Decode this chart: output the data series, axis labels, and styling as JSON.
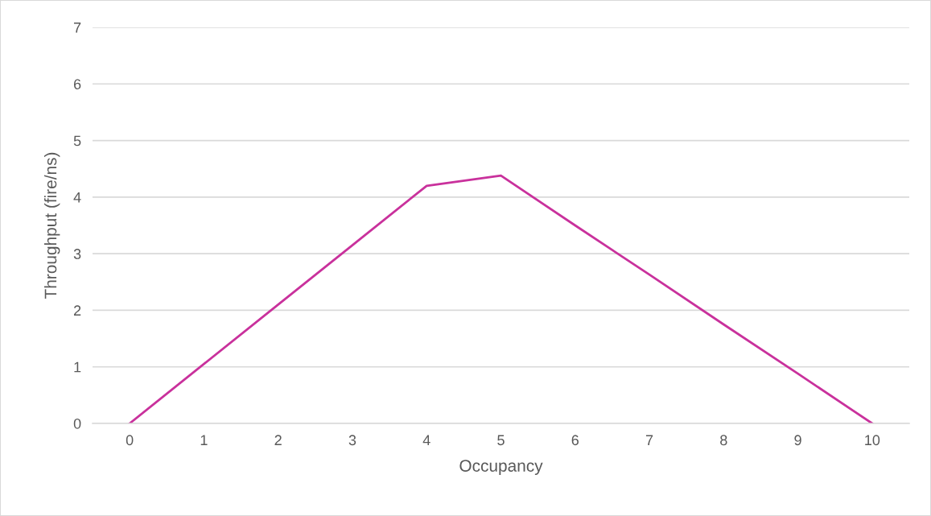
{
  "chart_data": {
    "type": "line",
    "xlabel": "Occupancy",
    "ylabel": "Throughput (fire/ns)",
    "categories": [
      "0",
      "1",
      "2",
      "3",
      "4",
      "5",
      "6",
      "7",
      "8",
      "9",
      "10"
    ],
    "series": [
      {
        "color": "#c9319c",
        "values": [
          0,
          1.05,
          2.1,
          3.15,
          4.2,
          4.38,
          3.5,
          2.63,
          1.75,
          0.88,
          0
        ]
      }
    ],
    "ylim": [
      0,
      7
    ],
    "yticks": [
      0,
      1,
      2,
      3,
      4,
      5,
      6,
      7
    ],
    "grid": "y",
    "marker": "none",
    "line_style": "solid"
  }
}
